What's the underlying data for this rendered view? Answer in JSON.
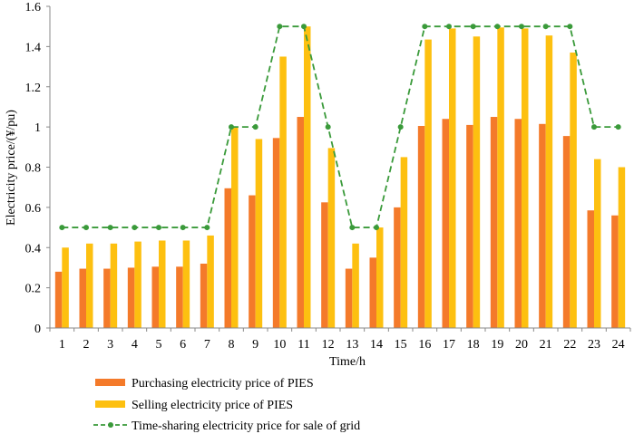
{
  "chart_data": {
    "type": "bar",
    "xlabel": "Time/h",
    "ylabel": "Electricity price/(¥/pu)",
    "ylim": [
      0,
      1.6
    ],
    "yticks": [
      "0",
      "0.2",
      "0.4",
      "0.6",
      "0.8",
      "1",
      "1.2",
      "1.4",
      "1.6"
    ],
    "ytick_values": [
      0,
      0.2,
      0.4,
      0.6,
      0.8,
      1.0,
      1.2,
      1.4,
      1.6
    ],
    "categories": [
      "1",
      "2",
      "3",
      "4",
      "5",
      "6",
      "7",
      "8",
      "9",
      "10",
      "11",
      "12",
      "13",
      "14",
      "15",
      "16",
      "17",
      "18",
      "19",
      "20",
      "21",
      "22",
      "23",
      "24"
    ],
    "grid": false,
    "legend_position": "bottom",
    "series": [
      {
        "name": "Purchasing electricity price of PIES",
        "kind": "bar",
        "color": "#f47a2a",
        "values": [
          0.28,
          0.295,
          0.295,
          0.3,
          0.305,
          0.305,
          0.32,
          0.695,
          0.66,
          0.945,
          1.05,
          0.625,
          0.295,
          0.35,
          0.6,
          1.005,
          1.04,
          1.01,
          1.05,
          1.04,
          1.015,
          0.955,
          0.585,
          0.56
        ]
      },
      {
        "name": "Selling electricity price of PIES",
        "kind": "bar",
        "color": "#fdc010",
        "values": [
          0.4,
          0.42,
          0.42,
          0.43,
          0.435,
          0.435,
          0.46,
          1.0,
          0.94,
          1.35,
          1.5,
          0.895,
          0.42,
          0.5,
          0.85,
          1.435,
          1.49,
          1.45,
          1.495,
          1.49,
          1.455,
          1.37,
          0.84,
          0.8
        ]
      },
      {
        "name": "Time-sharing electricity price for sale of grid",
        "kind": "line",
        "color": "#3a9a3a",
        "values": [
          0.5,
          0.5,
          0.5,
          0.5,
          0.5,
          0.5,
          0.5,
          1.0,
          1.0,
          1.5,
          1.5,
          1.0,
          0.5,
          0.5,
          1.0,
          1.5,
          1.5,
          1.5,
          1.5,
          1.5,
          1.5,
          1.5,
          1.0,
          1.0
        ]
      }
    ]
  }
}
